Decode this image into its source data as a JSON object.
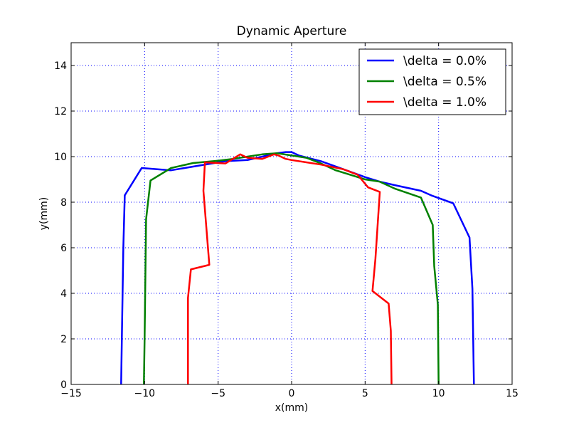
{
  "chart_data": {
    "type": "line",
    "title": "Dynamic Aperture",
    "xlabel": "x(mm)",
    "ylabel": "y(mm)",
    "xlim": [
      -15,
      15
    ],
    "ylim": [
      0,
      15
    ],
    "xticks": [
      -15,
      -10,
      -5,
      0,
      5,
      10,
      15
    ],
    "xtick_labels": [
      "−15",
      "−10",
      "−5",
      "0",
      "5",
      "10",
      "15"
    ],
    "yticks": [
      0,
      2,
      4,
      6,
      8,
      10,
      12,
      14
    ],
    "ytick_labels": [
      "0",
      "2",
      "4",
      "6",
      "8",
      "10",
      "12",
      "14"
    ],
    "grid": true,
    "legend_position": "top-right",
    "series": [
      {
        "name": "\\delta = 0.0%",
        "color": "#0000ff",
        "x": [
          -11.6,
          -11.55,
          -11.45,
          -11.35,
          -10.2,
          -8.2,
          -4.5,
          -3.0,
          -2.0,
          -1.0,
          -0.4,
          0.0,
          0.5,
          2.0,
          3.5,
          5.0,
          6.0,
          7.0,
          8.8,
          9.5,
          11.0,
          12.1,
          12.3,
          12.4
        ],
        "y": [
          0.0,
          2.0,
          6.0,
          8.3,
          9.5,
          9.4,
          9.8,
          9.85,
          10.0,
          10.15,
          10.2,
          10.2,
          10.05,
          9.8,
          9.45,
          9.1,
          8.9,
          8.75,
          8.5,
          8.3,
          7.95,
          6.45,
          4.2,
          0.0
        ]
      },
      {
        "name": "\\delta = 0.5%",
        "color": "#008000",
        "x": [
          -10.05,
          -10.0,
          -9.9,
          -9.6,
          -8.2,
          -6.7,
          -5.0,
          -4.0,
          -3.0,
          -2.0,
          -1.0,
          0.0,
          1.0,
          2.0,
          3.0,
          4.0,
          5.0,
          6.0,
          7.0,
          8.8,
          9.6,
          9.7,
          9.95,
          10.0
        ],
        "y": [
          0.0,
          2.0,
          7.25,
          8.95,
          9.5,
          9.72,
          9.82,
          9.9,
          10.0,
          10.1,
          10.15,
          10.05,
          9.95,
          9.7,
          9.4,
          9.2,
          9.0,
          8.9,
          8.6,
          8.2,
          7.0,
          5.2,
          3.5,
          0.0
        ]
      },
      {
        "name": "\\delta = 1.0%",
        "color": "#ff0000",
        "x": [
          -7.05,
          -7.05,
          -7.05,
          -6.85,
          -5.6,
          -6.0,
          -5.9,
          -4.5,
          -3.5,
          -3.0,
          -2.0,
          -1.2,
          -0.9,
          -0.4,
          0.0,
          1.0,
          2.0,
          3.5,
          4.5,
          5.2,
          6.0,
          5.7,
          5.5,
          6.6,
          6.75,
          6.8
        ],
        "y": [
          0.0,
          2.0,
          3.8,
          5.05,
          5.25,
          8.5,
          9.75,
          9.7,
          10.1,
          9.95,
          9.9,
          10.1,
          10.05,
          9.9,
          9.85,
          9.75,
          9.65,
          9.45,
          9.2,
          8.65,
          8.45,
          5.5,
          4.1,
          3.55,
          2.35,
          0.0
        ]
      }
    ]
  }
}
